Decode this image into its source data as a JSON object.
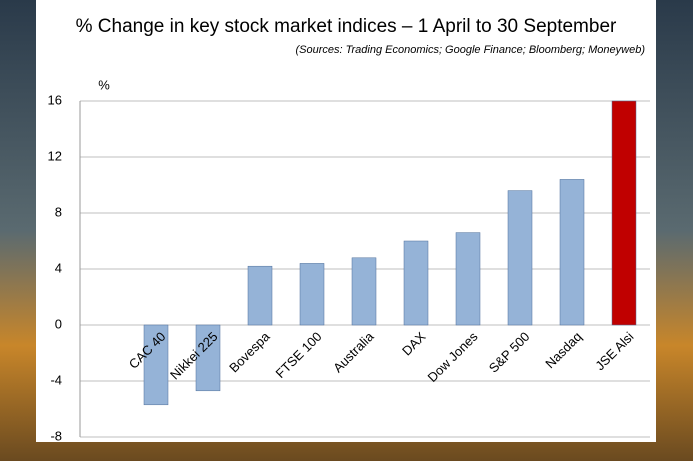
{
  "chart_data": {
    "type": "bar",
    "title": "% Change in key stock market indices – 1 April to 30 September",
    "subtitle": "(Sources: Trading Economics; Google Finance; Bloomberg; Moneyweb)",
    "y_label": "%",
    "categories": [
      "CAC 40",
      "Nikkei 225",
      "Bovespa",
      "FTSE 100",
      "Australia",
      "DAX",
      "Dow Jones",
      "S&P 500",
      "Nasdaq",
      "JSE Alsi"
    ],
    "values": [
      -5.7,
      -4.7,
      4.2,
      4.4,
      4.8,
      6.0,
      6.6,
      9.6,
      10.4,
      16.0
    ],
    "colors": [
      "#95b3d7",
      "#95b3d7",
      "#95b3d7",
      "#95b3d7",
      "#95b3d7",
      "#95b3d7",
      "#95b3d7",
      "#95b3d7",
      "#95b3d7",
      "#c00000"
    ],
    "ylim": [
      -8,
      16
    ],
    "yticks": [
      -8,
      -4,
      0,
      4,
      8,
      12,
      16
    ],
    "grid": true
  }
}
